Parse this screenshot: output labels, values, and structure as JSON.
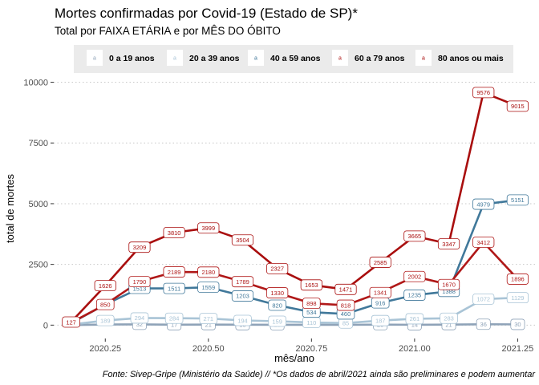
{
  "chart_data": {
    "type": "line",
    "title": "Mortes confirmadas por Covid-19 (Estado de SP)*",
    "subtitle": "Total por FAIXA ETÁRIA e por MÊS DO ÓBITO",
    "xlabel": "mês/ano",
    "ylabel": "total de mortes",
    "caption": "Fonte: Sivep-Gripe (Ministério da Saúde) // *Os dados de abril/2021 ainda são preliminares e podem aumentar",
    "xlim": [
      2020.125,
      2021.292
    ],
    "ylim": [
      -550,
      10150
    ],
    "x_ticks": [
      2020.25,
      2020.5,
      2020.75,
      2021.0,
      2021.25
    ],
    "x_tick_labels": [
      "2020.25",
      "2020.50",
      "2020.75",
      "2021.00",
      "2021.25"
    ],
    "y_ticks": [
      0,
      2500,
      5000,
      7500,
      10000
    ],
    "y_tick_labels": [
      "0",
      "2500",
      "5000",
      "7500",
      "10000"
    ],
    "grid": "horizontal dotted",
    "legend_position": "top",
    "legend_glyph": "a",
    "x": [
      2020.167,
      2020.25,
      2020.333,
      2020.417,
      2020.5,
      2020.583,
      2020.667,
      2020.75,
      2020.833,
      2020.917,
      2021.0,
      2021.083,
      2021.167,
      2021.25
    ],
    "series": [
      {
        "name": "0 a 19 anos",
        "color": "#8fa3b8",
        "values": [
          5,
          26,
          32,
          17,
          21,
          18,
          16,
          15,
          12,
          20,
          14,
          21,
          36,
          30
        ],
        "labels": [
          null,
          null,
          "32",
          "17",
          "21",
          "18",
          "16",
          null,
          null,
          "20",
          "14",
          "21",
          "36",
          "30"
        ]
      },
      {
        "name": "20 a 39 anos",
        "color": "#a9c4d6",
        "values": [
          20,
          189,
          294,
          284,
          271,
          194,
          159,
          110,
          85,
          187,
          261,
          283,
          1072,
          1129
        ],
        "labels": [
          null,
          "189",
          "294",
          "284",
          "271",
          "194",
          "159",
          "110",
          "85",
          "187",
          "261",
          "283",
          "1072",
          "1129"
        ]
      },
      {
        "name": "40 a 59 anos",
        "color": "#40789a",
        "values": [
          80,
          850,
          1513,
          1511,
          1559,
          1203,
          820,
          534,
          460,
          916,
          1235,
          1388,
          4979,
          5151
        ],
        "labels": [
          null,
          null,
          "1513",
          "1511",
          "1559",
          "1203",
          "820",
          "534",
          "460",
          "916",
          "1235",
          "1388",
          "4979",
          "5151"
        ]
      },
      {
        "name": "60 a 79 anos",
        "color": "#b01818",
        "values": [
          100,
          850,
          1790,
          2189,
          2180,
          1789,
          1330,
          898,
          818,
          1341,
          2002,
          1670,
          3412,
          1896
        ],
        "labels": [
          null,
          "850",
          "1790",
          "2189",
          "2180",
          "1789",
          "1330",
          "898",
          "818",
          "1341",
          "2002",
          "1670",
          "3412",
          "1896"
        ]
      },
      {
        "name": "80 anos ou mais",
        "color": "#a90e0e",
        "values": [
          127,
          1626,
          3209,
          3810,
          3999,
          3504,
          2327,
          1653,
          1471,
          2585,
          3665,
          3347,
          9576,
          9015
        ],
        "labels": [
          "127",
          "1626",
          "3209",
          "3810",
          "3999",
          "3504",
          "2327",
          "1653",
          "1471",
          "2585",
          "3665",
          "3347",
          "9576",
          "9015"
        ]
      }
    ]
  }
}
